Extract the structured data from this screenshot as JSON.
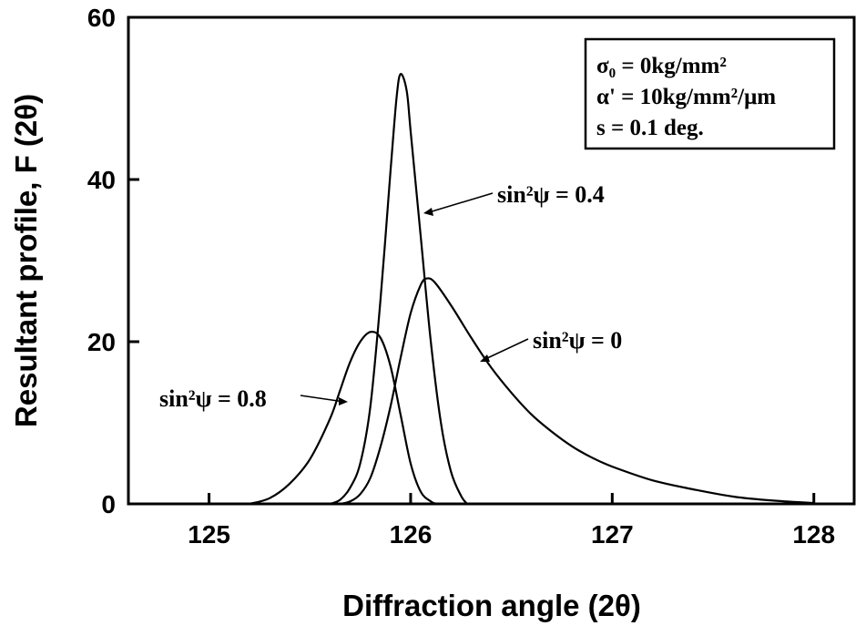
{
  "chart_data": {
    "type": "line",
    "xlabel": "Diffraction angle (2θ)",
    "ylabel": "Resultant profile, F (2θ)",
    "xlim": [
      124.6,
      128.2
    ],
    "ylim": [
      0,
      60
    ],
    "xticks": [
      125,
      126,
      127,
      128
    ],
    "yticks": [
      0,
      20,
      40,
      60
    ],
    "grid": false,
    "series": [
      {
        "name": "sin²ψ = 0",
        "x": [
          125.65,
          125.7,
          125.75,
          125.8,
          125.85,
          125.9,
          125.95,
          126.0,
          126.05,
          126.08,
          126.12,
          126.2,
          126.3,
          126.4,
          126.5,
          126.6,
          126.7,
          126.8,
          126.9,
          127.0,
          127.2,
          127.4,
          127.6,
          127.8,
          128.0
        ],
        "y": [
          0,
          0.3,
          1.2,
          3.2,
          7.0,
          12.0,
          18.0,
          23.5,
          27.0,
          27.8,
          27.3,
          24.5,
          20.5,
          16.8,
          13.7,
          11.0,
          8.9,
          7.1,
          5.7,
          4.6,
          2.9,
          1.8,
          0.9,
          0.4,
          0.1
        ]
      },
      {
        "name": "sin²ψ = 0.4",
        "x": [
          125.6,
          125.65,
          125.7,
          125.75,
          125.8,
          125.85,
          125.9,
          125.93,
          125.95,
          125.98,
          126.0,
          126.05,
          126.1,
          126.15,
          126.2,
          126.25,
          126.28
        ],
        "y": [
          0,
          0.5,
          2.0,
          5.0,
          12.0,
          25.0,
          41.0,
          50.0,
          53.0,
          51.0,
          46.0,
          33.0,
          20.0,
          10.0,
          4.0,
          1.0,
          0
        ]
      },
      {
        "name": "sin²ψ = 0.8",
        "x": [
          125.2,
          125.3,
          125.4,
          125.5,
          125.6,
          125.65,
          125.7,
          125.75,
          125.8,
          125.85,
          125.9,
          125.95,
          126.0,
          126.05,
          126.1,
          126.13
        ],
        "y": [
          0,
          0.7,
          2.5,
          5.5,
          10.5,
          14.0,
          17.5,
          20.0,
          21.2,
          20.5,
          17.0,
          11.0,
          5.0,
          1.5,
          0.3,
          0
        ]
      }
    ],
    "annotations": [
      {
        "series": 2,
        "text": "sin²ψ = 0.8"
      },
      {
        "series": 1,
        "text": "sin²ψ = 0.4"
      },
      {
        "series": 0,
        "text": "sin²ψ = 0"
      }
    ],
    "legend_box": {
      "line1": "σ₀ = 0kg/mm²",
      "line2": "α' = 10kg/mm²/μm",
      "line3": "s = 0.1 deg."
    }
  }
}
